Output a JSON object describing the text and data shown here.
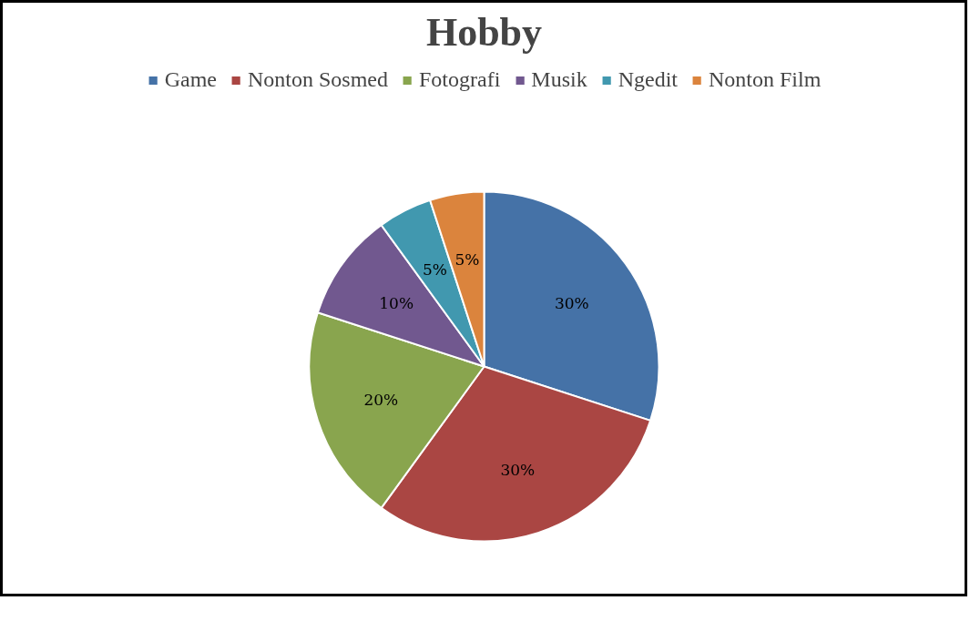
{
  "chart_data": {
    "type": "pie",
    "title": "Hobby",
    "categories": [
      "Game",
      "Nonton Sosmed",
      "Fotografi",
      "Musik",
      "Ngedit",
      "Nonton Film"
    ],
    "values": [
      30,
      30,
      20,
      10,
      5,
      5
    ],
    "colors": [
      "#4572a7",
      "#aa4643",
      "#89a54e",
      "#71588f",
      "#4198af",
      "#db843d"
    ],
    "value_labels": [
      "30%",
      "30%",
      "20%",
      "10%",
      "5%",
      "5%"
    ],
    "legend": "top"
  }
}
